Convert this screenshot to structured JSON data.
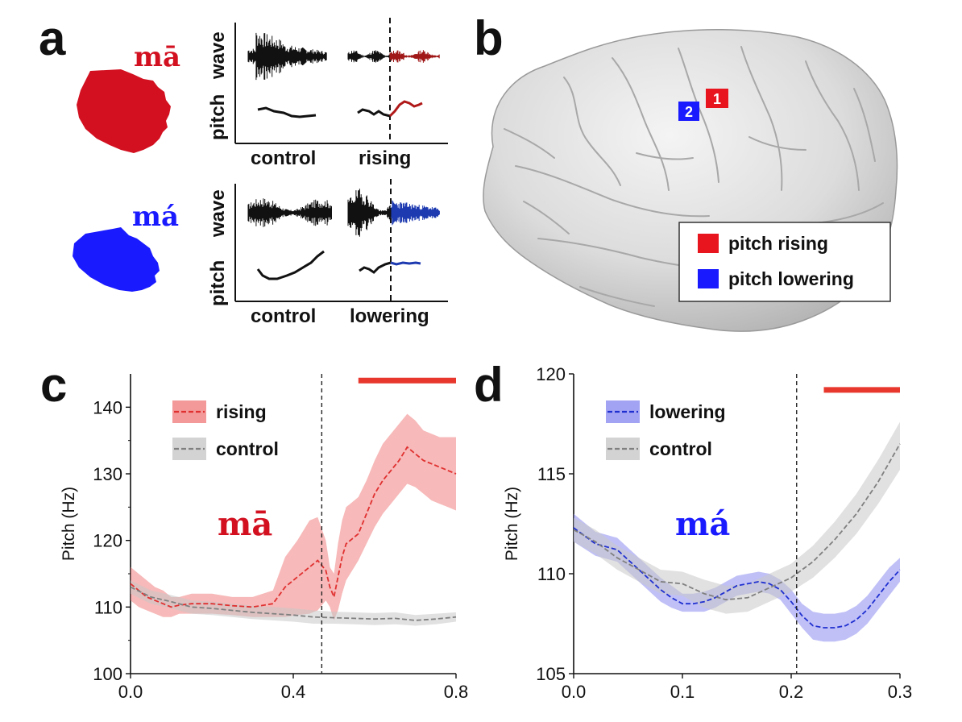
{
  "panel_a": {
    "letter": "a",
    "rows": [
      {
        "syllable": "mā",
        "color": "#d21020",
        "ylabel_top": "wave",
        "ylabel_bottom": "pitch",
        "conditions": [
          "control",
          "rising"
        ]
      },
      {
        "syllable": "má",
        "color": "#1a1aff",
        "ylabel_top": "wave",
        "ylabel_bottom": "pitch",
        "conditions": [
          "control",
          "lowering"
        ]
      }
    ]
  },
  "panel_b": {
    "letter": "b",
    "markers": [
      {
        "label": "1",
        "color": "#e8141e"
      },
      {
        "label": "2",
        "color": "#1a1aff"
      }
    ],
    "legend": [
      {
        "label": "pitch rising",
        "color": "#e8141e"
      },
      {
        "label": "pitch lowering",
        "color": "#1a1aff"
      }
    ]
  },
  "chart_data": [
    {
      "panel": "c",
      "type": "line",
      "title": "",
      "annotation": "mā",
      "annotation_color": "#d21020",
      "xlabel": "",
      "ylabel": "Pitch (Hz)",
      "xlim": [
        0.0,
        0.8
      ],
      "ylim": [
        100,
        145
      ],
      "xticks": [
        "0.0",
        "0.4",
        "0.8"
      ],
      "yticks": [
        "100",
        "110",
        "120",
        "130",
        "140"
      ],
      "vline_x": 0.47,
      "significance_bar": {
        "x": [
          0.56,
          0.8
        ],
        "y": 144,
        "color": "#e8372c"
      },
      "legend_position": "top-left",
      "series": [
        {
          "name": "rising",
          "color": "#e03030",
          "band_color": "#f08080",
          "x": [
            0.0,
            0.02,
            0.04,
            0.06,
            0.08,
            0.1,
            0.12,
            0.15,
            0.2,
            0.25,
            0.3,
            0.35,
            0.38,
            0.41,
            0.44,
            0.46,
            0.48,
            0.49,
            0.5,
            0.51,
            0.52,
            0.53,
            0.54,
            0.56,
            0.58,
            0.6,
            0.62,
            0.64,
            0.66,
            0.68,
            0.7,
            0.72,
            0.74,
            0.76,
            0.78,
            0.8
          ],
          "mean": [
            113.5,
            112.5,
            111.5,
            111.0,
            110.5,
            110.0,
            110.3,
            110.5,
            110.5,
            110.2,
            110.0,
            110.5,
            113.0,
            114.5,
            116.0,
            117.0,
            115.5,
            113.0,
            111.5,
            114.5,
            117.5,
            119.5,
            120.0,
            121.0,
            124.0,
            127.0,
            129.0,
            130.5,
            132.0,
            134.0,
            133.0,
            132.0,
            131.5,
            131.0,
            130.5,
            130.0
          ],
          "lower": [
            111.0,
            110.0,
            109.5,
            109.0,
            108.5,
            108.5,
            109.0,
            109.0,
            109.0,
            108.8,
            108.5,
            108.5,
            108.5,
            108.8,
            109.0,
            109.5,
            111.0,
            110.0,
            108.0,
            109.5,
            112.0,
            114.0,
            115.0,
            117.0,
            119.5,
            122.0,
            124.0,
            125.5,
            127.0,
            128.5,
            128.0,
            127.0,
            126.0,
            125.5,
            125.0,
            124.5
          ],
          "upper": [
            116.0,
            115.0,
            114.0,
            113.0,
            112.5,
            111.5,
            111.5,
            112.0,
            112.0,
            111.5,
            111.5,
            112.5,
            117.5,
            120.0,
            123.0,
            123.5,
            120.0,
            116.0,
            115.0,
            119.5,
            123.0,
            125.0,
            125.5,
            126.5,
            129.0,
            132.0,
            134.5,
            136.0,
            137.5,
            139.0,
            138.0,
            136.5,
            136.0,
            135.5,
            135.5,
            135.5
          ]
        },
        {
          "name": "control",
          "color": "#808080",
          "band_color": "#c8c8c8",
          "x": [
            0.0,
            0.05,
            0.1,
            0.15,
            0.2,
            0.25,
            0.3,
            0.35,
            0.4,
            0.45,
            0.5,
            0.55,
            0.6,
            0.65,
            0.7,
            0.75,
            0.8
          ],
          "mean": [
            113.0,
            111.5,
            110.8,
            110.0,
            109.8,
            109.5,
            109.2,
            109.0,
            108.8,
            108.5,
            108.4,
            108.3,
            108.2,
            108.3,
            108.0,
            108.2,
            108.5
          ],
          "lower": [
            112.0,
            110.5,
            109.8,
            109.0,
            108.8,
            108.5,
            108.2,
            108.0,
            107.8,
            107.5,
            107.5,
            107.4,
            107.3,
            107.4,
            107.2,
            107.4,
            107.8
          ],
          "upper": [
            114.0,
            112.5,
            111.8,
            111.0,
            110.8,
            110.5,
            110.2,
            110.0,
            109.8,
            109.5,
            109.3,
            109.2,
            109.1,
            109.2,
            108.8,
            109.0,
            109.2
          ]
        }
      ]
    },
    {
      "panel": "d",
      "type": "line",
      "title": "",
      "annotation": "má",
      "annotation_color": "#1a1aff",
      "xlabel": "",
      "ylabel": "Pitch (Hz)",
      "xlim": [
        0.0,
        0.3
      ],
      "ylim": [
        105,
        120
      ],
      "xticks": [
        "0.0",
        "0.1",
        "0.2",
        "0.3"
      ],
      "yticks": [
        "105",
        "110",
        "115",
        "120"
      ],
      "vline_x": 0.205,
      "significance_bar": {
        "x": [
          0.23,
          0.3
        ],
        "y": 119.2,
        "color": "#e8372c"
      },
      "legend_position": "top-left",
      "series": [
        {
          "name": "lowering",
          "color": "#2030d0",
          "band_color": "#8c8cf0",
          "x": [
            0.0,
            0.02,
            0.04,
            0.06,
            0.08,
            0.09,
            0.1,
            0.11,
            0.12,
            0.13,
            0.14,
            0.15,
            0.16,
            0.17,
            0.18,
            0.19,
            0.2,
            0.21,
            0.22,
            0.23,
            0.24,
            0.25,
            0.26,
            0.27,
            0.28,
            0.29,
            0.3
          ],
          "mean": [
            112.3,
            111.5,
            111.2,
            110.2,
            109.2,
            108.8,
            108.5,
            108.5,
            108.6,
            108.8,
            109.1,
            109.4,
            109.5,
            109.6,
            109.5,
            109.2,
            108.6,
            107.9,
            107.4,
            107.3,
            107.3,
            107.4,
            107.7,
            108.2,
            108.9,
            109.6,
            110.2
          ],
          "lower": [
            111.6,
            110.9,
            110.6,
            109.6,
            108.6,
            108.3,
            108.1,
            108.1,
            108.1,
            108.3,
            108.6,
            108.9,
            109.0,
            109.1,
            109.0,
            108.7,
            108.0,
            107.3,
            106.7,
            106.6,
            106.6,
            106.7,
            107.0,
            107.5,
            108.2,
            108.9,
            109.6
          ],
          "upper": [
            113.0,
            112.1,
            111.8,
            110.8,
            109.8,
            109.4,
            109.0,
            109.0,
            109.1,
            109.3,
            109.6,
            109.9,
            110.0,
            110.1,
            110.0,
            109.7,
            109.2,
            108.5,
            108.1,
            108.0,
            108.0,
            108.1,
            108.4,
            108.9,
            109.6,
            110.3,
            110.8
          ]
        },
        {
          "name": "control",
          "color": "#808080",
          "band_color": "#c8c8c8",
          "x": [
            0.0,
            0.02,
            0.04,
            0.06,
            0.08,
            0.1,
            0.12,
            0.14,
            0.16,
            0.18,
            0.2,
            0.22,
            0.24,
            0.26,
            0.28,
            0.3
          ],
          "mean": [
            112.2,
            111.6,
            110.8,
            110.2,
            109.6,
            109.5,
            109.0,
            108.7,
            108.8,
            109.3,
            109.8,
            110.6,
            111.7,
            113.0,
            114.6,
            116.5
          ],
          "lower": [
            111.6,
            111.0,
            110.2,
            109.6,
            109.0,
            108.9,
            108.3,
            108.0,
            108.1,
            108.6,
            109.1,
            109.8,
            110.8,
            112.0,
            113.5,
            115.2
          ],
          "upper": [
            112.8,
            112.2,
            111.4,
            110.8,
            110.2,
            110.1,
            109.7,
            109.4,
            109.5,
            110.0,
            110.5,
            111.4,
            112.6,
            114.0,
            115.7,
            117.6
          ]
        }
      ]
    }
  ]
}
